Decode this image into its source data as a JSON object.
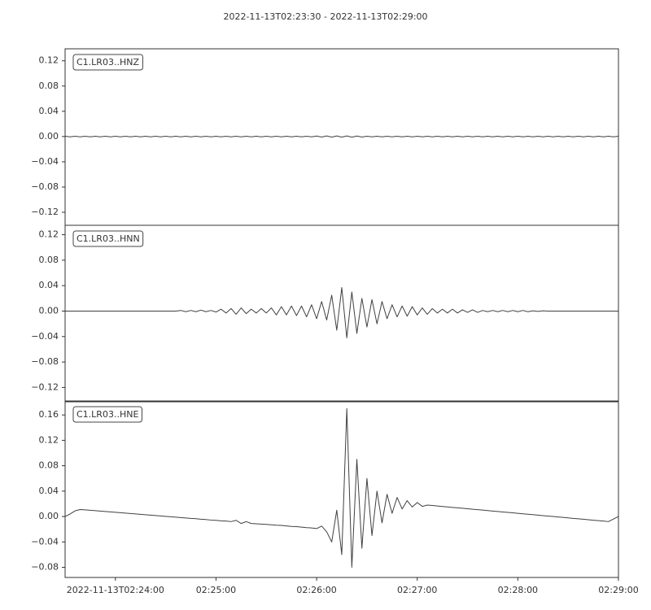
{
  "chart_data": {
    "type": "line",
    "title": "2022-11-13T02:23:30  -  2022-11-13T02:29:00",
    "xlim": [
      "2022-11-13T02:23:30",
      "2022-11-13T02:29:00"
    ],
    "xticks": [
      "2022-11-13T02:24:00",
      "02:25:00",
      "02:26:00",
      "02:27:00",
      "02:28:00",
      "02:29:00"
    ],
    "x": [
      "02:23:30",
      "02:23:33",
      "02:23:36",
      "02:23:39",
      "02:23:42",
      "02:23:45",
      "02:23:48",
      "02:23:51",
      "02:23:54",
      "02:23:57",
      "02:24:00",
      "02:24:03",
      "02:24:06",
      "02:24:09",
      "02:24:12",
      "02:24:15",
      "02:24:18",
      "02:24:21",
      "02:24:24",
      "02:24:27",
      "02:24:30",
      "02:24:33",
      "02:24:36",
      "02:24:39",
      "02:24:42",
      "02:24:45",
      "02:24:48",
      "02:24:51",
      "02:24:54",
      "02:24:57",
      "02:25:00",
      "02:25:03",
      "02:25:06",
      "02:25:09",
      "02:25:12",
      "02:25:15",
      "02:25:18",
      "02:25:21",
      "02:25:24",
      "02:25:27",
      "02:25:30",
      "02:25:33",
      "02:25:36",
      "02:25:39",
      "02:25:42",
      "02:25:45",
      "02:25:48",
      "02:25:51",
      "02:25:54",
      "02:25:57",
      "02:26:00",
      "02:26:03",
      "02:26:06",
      "02:26:09",
      "02:26:12",
      "02:26:15",
      "02:26:18",
      "02:26:21",
      "02:26:24",
      "02:26:27",
      "02:26:30",
      "02:26:33",
      "02:26:36",
      "02:26:39",
      "02:26:42",
      "02:26:45",
      "02:26:48",
      "02:26:51",
      "02:26:54",
      "02:26:57",
      "02:27:00",
      "02:27:03",
      "02:27:06",
      "02:27:09",
      "02:27:12",
      "02:27:15",
      "02:27:18",
      "02:27:21",
      "02:27:24",
      "02:27:27",
      "02:27:30",
      "02:27:33",
      "02:27:36",
      "02:27:39",
      "02:27:42",
      "02:27:45",
      "02:27:48",
      "02:27:51",
      "02:27:54",
      "02:27:57",
      "02:28:00",
      "02:28:03",
      "02:28:06",
      "02:28:09",
      "02:28:12",
      "02:28:15",
      "02:28:18",
      "02:28:21",
      "02:28:24",
      "02:28:27",
      "02:28:30",
      "02:28:33",
      "02:28:36",
      "02:28:39",
      "02:28:42",
      "02:28:45",
      "02:28:48",
      "02:28:51",
      "02:28:54",
      "02:28:57",
      "02:29:00"
    ],
    "series": [
      {
        "name": "C1.LR03..HNZ",
        "color": "#404040",
        "ylim": [
          -0.1406,
          0.139
        ],
        "yticks": [
          0.12,
          0.08,
          0.04,
          {
            "value": 0,
            "label": "0.00"
          },
          {
            "value": -0.04,
            "label": "−0.04"
          },
          {
            "value": -0.08,
            "label": "−0.08"
          },
          {
            "value": -0.12,
            "label": "−0.12"
          }
        ],
        "values": [
          0.0005,
          -0.0005,
          0.0005,
          -0.0005,
          0.0005,
          -0.0005,
          0.0005,
          -0.0005,
          0.0005,
          -0.0005,
          0.0005,
          -0.0005,
          0.0005,
          -0.0005,
          0.0005,
          -0.0005,
          0.0005,
          -0.0005,
          0.0005,
          -0.0005,
          0.0005,
          -0.0005,
          0.0005,
          -0.0005,
          0.0005,
          -0.0005,
          0.0005,
          -0.0005,
          0.0005,
          -0.0005,
          0.0005,
          -0.0005,
          0.0005,
          -0.0005,
          0.0005,
          -0.0005,
          0.0005,
          -0.0005,
          0.0005,
          -0.0005,
          0.0005,
          -0.0005,
          0.0005,
          -0.0005,
          0.0005,
          -0.0005,
          0.0005,
          -0.0005,
          0.0005,
          -0.0005,
          0.0008,
          -0.0008,
          0.001,
          -0.001,
          0.001,
          -0.001,
          0.001,
          -0.001,
          0.0008,
          -0.0008,
          0.0005,
          -0.0005,
          0.0005,
          -0.0005,
          0.0005,
          -0.0005,
          0.0005,
          -0.0005,
          0.0005,
          -0.0005,
          0.0005,
          -0.0005,
          0.0005,
          -0.0005,
          0.0005,
          -0.0005,
          0.0005,
          -0.0005,
          0.0005,
          -0.0005,
          0.0005,
          -0.0005,
          0.0005,
          -0.0005,
          0.0005,
          -0.0005,
          0.0005,
          -0.0005,
          0.0005,
          -0.0005,
          0.0005,
          -0.0005,
          0.0005,
          -0.0005,
          0.0005,
          -0.0005,
          0.0005,
          -0.0005,
          0.0005,
          -0.0005,
          0.0005,
          -0.0005,
          0.0005,
          -0.0005,
          0.0005,
          -0.0005,
          0.0005,
          -0.0005,
          0.0005,
          -0.0005,
          0.0005
        ]
      },
      {
        "name": "C1.LR03..HNN",
        "color": "#404040",
        "ylim": [
          -0.1425,
          0.1348
        ],
        "yticks": [
          0.12,
          0.08,
          0.04,
          {
            "value": 0,
            "label": "0.00"
          },
          {
            "value": -0.04,
            "label": "−0.04"
          },
          {
            "value": -0.08,
            "label": "−0.08"
          },
          {
            "value": -0.12,
            "label": "−0.12"
          }
        ],
        "values": [
          0,
          0,
          0,
          0,
          0,
          0,
          0,
          0,
          0,
          0,
          0,
          0,
          0,
          0,
          0,
          0,
          0,
          0,
          0,
          0,
          0,
          0,
          0,
          0.001,
          -0.001,
          0.001,
          -0.001,
          0.0015,
          -0.001,
          0.001,
          -0.0015,
          0.003,
          -0.003,
          0.004,
          -0.005,
          0.005,
          -0.004,
          0.003,
          -0.003,
          0.004,
          -0.003,
          0.005,
          -0.006,
          0.007,
          -0.006,
          0.008,
          -0.007,
          0.008,
          -0.009,
          0.01,
          -0.012,
          0.015,
          -0.014,
          0.025,
          -0.03,
          0.037,
          -0.042,
          0.03,
          -0.035,
          0.02,
          -0.025,
          0.018,
          -0.02,
          0.015,
          -0.012,
          0.01,
          -0.009,
          0.008,
          -0.008,
          0.007,
          -0.006,
          0.005,
          -0.005,
          0.004,
          -0.003,
          0.003,
          -0.003,
          0.003,
          -0.003,
          0.002,
          -0.002,
          0.002,
          -0.002,
          0.001,
          -0.001,
          0.001,
          -0.001,
          0.001,
          -0.001,
          0.001,
          -0.001,
          0.001,
          -0.001,
          0.0005,
          -0.0005,
          0.0005,
          0,
          0,
          0,
          0,
          0,
          0,
          0,
          0,
          0,
          0,
          0,
          0,
          0,
          0,
          0
        ]
      },
      {
        "name": "C1.LR03..HNE",
        "color": "#404040",
        "ylim": [
          -0.096,
          0.182
        ],
        "yticks": [
          0.16,
          0.12,
          0.08,
          0.04,
          {
            "value": 0,
            "label": "0.00"
          },
          {
            "value": -0.04,
            "label": "−0.04"
          },
          {
            "value": -0.08,
            "label": "−0.08"
          }
        ],
        "values": [
          0,
          0.004,
          0.009,
          0.011,
          0.0105,
          0.0098,
          0.0092,
          0.0085,
          0.0079,
          0.0073,
          0.0066,
          0.006,
          0.0054,
          0.0047,
          0.0041,
          0.0035,
          0.0028,
          0.0022,
          0.0016,
          0.0009,
          0.0002,
          -0.0004,
          -0.001,
          -0.0017,
          -0.0023,
          -0.003,
          -0.0035,
          -0.0043,
          -0.0048,
          -0.0056,
          -0.006,
          -0.0068,
          -0.0072,
          -0.008,
          -0.006,
          -0.011,
          -0.008,
          -0.011,
          -0.0115,
          -0.012,
          -0.0124,
          -0.013,
          -0.0137,
          -0.014,
          -0.0148,
          -0.0156,
          -0.016,
          -0.0168,
          -0.0175,
          -0.018,
          -0.019,
          -0.015,
          -0.024,
          -0.04,
          0.01,
          -0.06,
          0.17,
          -0.08,
          0.09,
          -0.05,
          0.06,
          -0.03,
          0.04,
          -0.01,
          0.035,
          0.005,
          0.03,
          0.012,
          0.025,
          0.015,
          0.022,
          0.016,
          0.018,
          0.0173,
          0.0166,
          0.0158,
          0.0151,
          0.0144,
          0.0137,
          0.013,
          0.0122,
          0.0115,
          0.0108,
          0.0101,
          0.0094,
          0.0086,
          0.0079,
          0.0072,
          0.0065,
          0.0058,
          0.005,
          0.0043,
          0.0036,
          0.0029,
          0.0022,
          0.0014,
          0.0007,
          0,
          -0.0007,
          -0.0014,
          -0.0022,
          -0.0029,
          -0.0036,
          -0.0043,
          -0.005,
          -0.0058,
          -0.0065,
          -0.0072,
          -0.008,
          -0.004,
          0
        ]
      }
    ]
  }
}
